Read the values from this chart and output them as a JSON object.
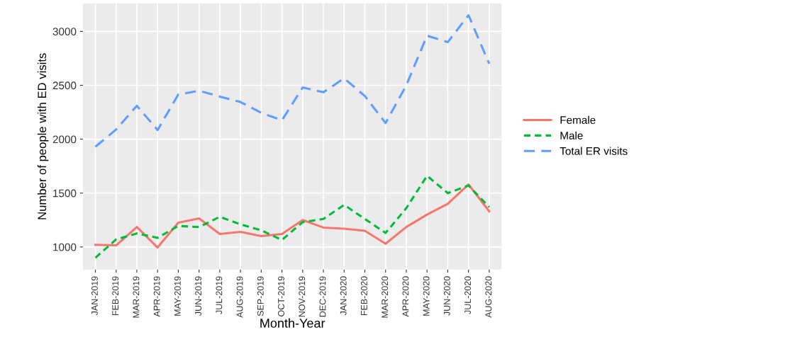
{
  "chart_data": {
    "type": "line",
    "xlabel": "Month-Year",
    "ylabel": "Number of people with ED visits",
    "categories": [
      "JAN-2019",
      "FEB-2019",
      "MAR-2019",
      "APR-2019",
      "MAY-2019",
      "JUN-2019",
      "JUL-2019",
      "AUG-2019",
      "SEP-2019",
      "OCT-2019",
      "NOV-2019",
      "DEC-2019",
      "JAN-2020",
      "FEB-2020",
      "MAR-2020",
      "APR-2020",
      "MAY-2020",
      "JUN-2020",
      "JUL-2020",
      "AUG-2020"
    ],
    "series": [
      {
        "name": "Female",
        "color": "#f8766d",
        "line_style": "solid",
        "values": [
          1020,
          1015,
          1185,
          995,
          1225,
          1265,
          1120,
          1140,
          1100,
          1120,
          1250,
          1180,
          1170,
          1150,
          1030,
          1185,
          1300,
          1400,
          1580,
          1330
        ]
      },
      {
        "name": "Male",
        "color": "#00ba38",
        "line_style": "dotted",
        "values": [
          900,
          1070,
          1125,
          1085,
          1195,
          1185,
          1280,
          1210,
          1155,
          1065,
          1230,
          1260,
          1390,
          1260,
          1130,
          1360,
          1660,
          1500,
          1570,
          1370
        ]
      },
      {
        "name": "Total ER visits",
        "color": "#619cff",
        "line_style": "dashed",
        "values": [
          1930,
          2090,
          2310,
          2085,
          2415,
          2450,
          2395,
          2345,
          2245,
          2175,
          2480,
          2435,
          2565,
          2400,
          2150,
          2500,
          2960,
          2900,
          3150,
          2700
        ]
      }
    ],
    "ylim": [
      790,
      3260
    ],
    "yticks": [
      1000,
      1500,
      2000,
      2500,
      3000
    ],
    "grid": true,
    "legend": "right",
    "marker": "none"
  }
}
